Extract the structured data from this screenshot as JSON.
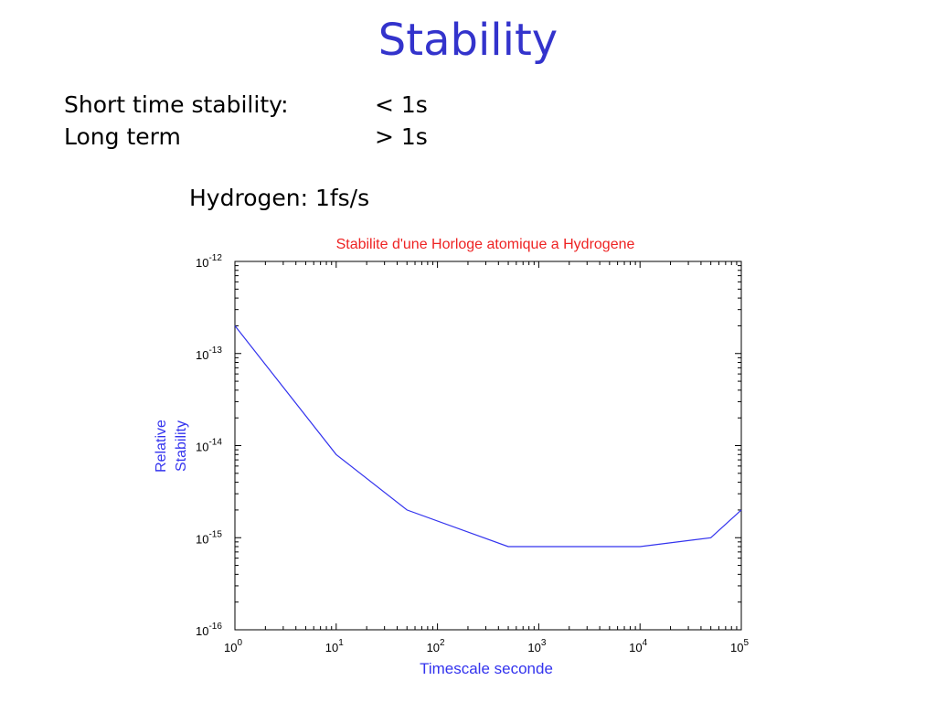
{
  "slide": {
    "title": "Stability",
    "rows": [
      {
        "label": "Short time stability:",
        "value": "< 1s"
      },
      {
        "label": "Long term",
        "value": "> 1s"
      }
    ],
    "note": "Hydrogen: 1fs/s"
  },
  "chart_data": {
    "type": "line",
    "title": "Stabilite d'une Horloge atomique a Hydrogene",
    "xlabel": "Timescale seconde",
    "ylabel": [
      "Relative",
      "Stability"
    ],
    "xscale": "log",
    "yscale": "log",
    "xlim": [
      1,
      100000
    ],
    "ylim": [
      1e-16,
      1e-12
    ],
    "xticks": [
      {
        "base": "10",
        "exp": "0"
      },
      {
        "base": "10",
        "exp": "1"
      },
      {
        "base": "10",
        "exp": "2"
      },
      {
        "base": "10",
        "exp": "3"
      },
      {
        "base": "10",
        "exp": "4"
      },
      {
        "base": "10",
        "exp": "5"
      }
    ],
    "yticks": [
      {
        "base": "10",
        "exp": "-12"
      },
      {
        "base": "10",
        "exp": "-13"
      },
      {
        "base": "10",
        "exp": "-14"
      },
      {
        "base": "10",
        "exp": "-15"
      },
      {
        "base": "10",
        "exp": "-16"
      }
    ],
    "grid": false,
    "series": [
      {
        "x": [
          1,
          10,
          50,
          500,
          10000,
          50000,
          100000
        ],
        "y": [
          2e-13,
          8e-15,
          2e-15,
          8e-16,
          8e-16,
          1e-15,
          2e-15
        ]
      }
    ],
    "colors": {
      "line": "#3333ee",
      "title": "#ee2222",
      "labels": "#3333ee",
      "axes": "#000000"
    }
  }
}
